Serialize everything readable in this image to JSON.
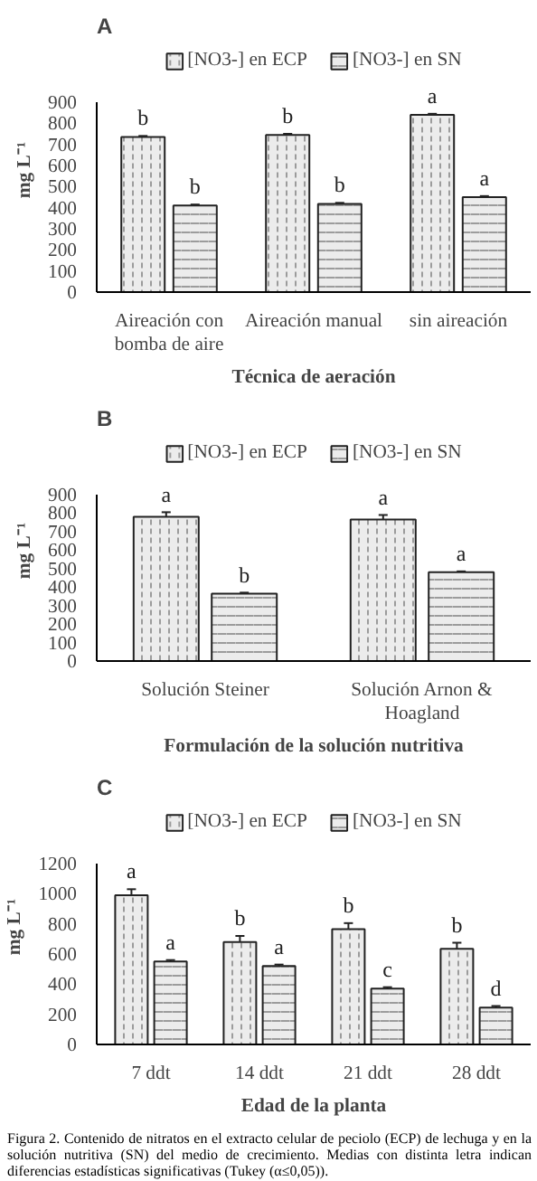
{
  "chart_data": [
    {
      "type": "bar",
      "title": "A",
      "xlabel": "Técnica de aeración",
      "ylabel": "mg L⁻¹",
      "categories": [
        "Aireación con bomba de aire",
        "Aireación manual",
        "sin aireación"
      ],
      "ylim": [
        0,
        900
      ],
      "yticks": [
        0,
        100,
        200,
        300,
        400,
        500,
        600,
        700,
        800,
        900
      ],
      "legend": "top",
      "grid": false,
      "series": [
        {
          "name": "[NO3-] en ECP",
          "color": "#ececec",
          "values": [
            735,
            745,
            840
          ],
          "errors": [
            5,
            5,
            5
          ],
          "value_labels": [
            "b",
            "b",
            "a"
          ]
        },
        {
          "name": "[NO3-] en SN",
          "color": "#ececec",
          "values": [
            410,
            418,
            450
          ],
          "errors": [
            5,
            5,
            5
          ],
          "value_labels": [
            "b",
            "b",
            "a"
          ]
        }
      ]
    },
    {
      "type": "bar",
      "title": "B",
      "xlabel": "Formulación de la solución nutritiva",
      "ylabel": "mg L⁻¹",
      "categories": [
        "Solución Steiner",
        "Solución Arnon & Hoagland"
      ],
      "ylim": [
        0,
        900
      ],
      "yticks": [
        0,
        100,
        200,
        300,
        400,
        500,
        600,
        700,
        800,
        900
      ],
      "legend": "top",
      "grid": false,
      "series": [
        {
          "name": "[NO3-] en ECP",
          "color": "#ececec",
          "values": [
            780,
            765
          ],
          "errors": [
            25,
            25
          ],
          "value_labels": [
            "a",
            "a"
          ]
        },
        {
          "name": "[NO3-] en SN",
          "color": "#ececec",
          "values": [
            365,
            480
          ],
          "errors": [
            5,
            5
          ],
          "value_labels": [
            "b",
            "a"
          ]
        }
      ]
    },
    {
      "type": "bar",
      "title": "C",
      "xlabel": "Edad de la planta",
      "ylabel": "mg L⁻¹",
      "categories": [
        "7 ddt",
        "14 ddt",
        "21 ddt",
        "28 ddt"
      ],
      "ylim": [
        0,
        1200
      ],
      "yticks": [
        0,
        200,
        400,
        600,
        800,
        1000,
        1200
      ],
      "legend": "top",
      "grid": false,
      "annotations": [
        "Figura 2. Contenido de nitratos en el extracto celular de peciolo (ECP) de lechuga y en la solución nutritiva (SN) del medio de crecimiento. Medias con distinta letra indican diferencias estadísticas significativas (Tukey (α≤0,05))."
      ],
      "series": [
        {
          "name": "[NO3-] en ECP",
          "color": "#ececec",
          "values": [
            990,
            680,
            765,
            635
          ],
          "errors": [
            40,
            40,
            40,
            40
          ],
          "value_labels": [
            "a",
            "b",
            "b",
            "b"
          ]
        },
        {
          "name": "[NO3-] en SN",
          "color": "#ececec",
          "values": [
            550,
            520,
            370,
            245
          ],
          "errors": [
            10,
            10,
            10,
            10
          ],
          "value_labels": [
            "a",
            "a",
            "c",
            "d"
          ]
        }
      ]
    }
  ]
}
